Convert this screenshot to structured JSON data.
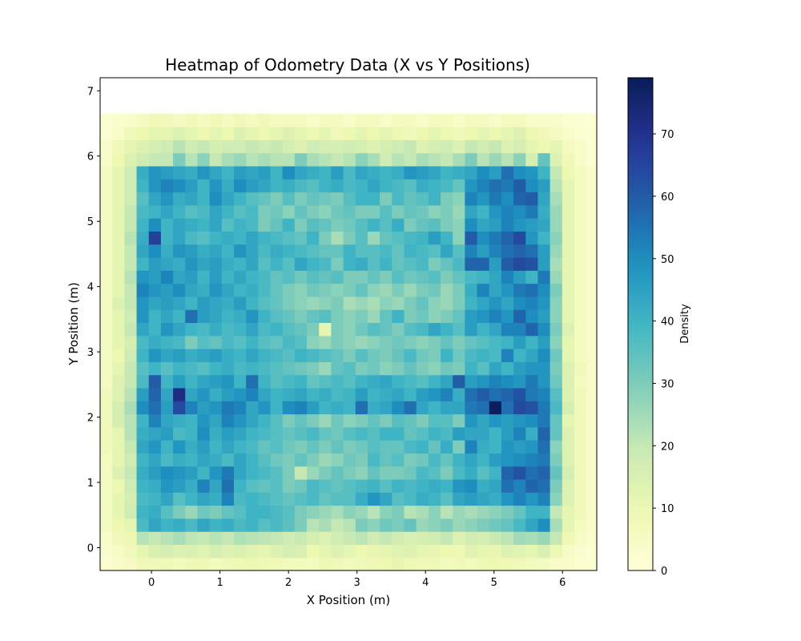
{
  "chart_data": {
    "type": "heatmap",
    "title": "Heatmap of Odometry Data (X vs Y Positions)",
    "xlabel": "X Position (m)",
    "ylabel": "Y Position (m)",
    "xlim": [
      -0.75,
      6.5
    ],
    "ylim": [
      -0.35,
      7.2
    ],
    "bin_size": [
      0.1775,
      0.2
    ],
    "x_start": -0.75,
    "y_start": -0.35,
    "xticks": [
      0,
      1,
      2,
      3,
      4,
      5,
      6
    ],
    "yticks": [
      0,
      1,
      2,
      3,
      4,
      5,
      6,
      7
    ],
    "xtick_labels": [
      "0",
      "1",
      "2",
      "3",
      "4",
      "5",
      "6"
    ],
    "ytick_labels": [
      "0",
      "1",
      "2",
      "3",
      "4",
      "5",
      "6",
      "7"
    ],
    "colorbar": {
      "label": "Density",
      "min": 0,
      "max": 79,
      "ticks": [
        0,
        10,
        20,
        30,
        40,
        50,
        60,
        70
      ],
      "tick_labels": [
        "0",
        "10",
        "20",
        "30",
        "40",
        "50",
        "60",
        "70"
      ],
      "colormap": "YlGnBu"
    },
    "grid": false,
    "rows_note": "rows listed from bottom (y=-0.35) to top (y=7.2)",
    "values": [
      [
        2,
        4,
        5,
        8,
        8,
        9,
        7,
        9,
        9,
        7,
        8,
        9,
        10,
        9,
        8,
        7,
        7,
        6,
        9,
        8,
        7,
        8,
        9,
        10,
        11,
        9,
        8,
        9,
        7,
        8,
        7,
        9,
        10,
        9,
        8,
        7,
        6,
        4,
        4,
        2,
        2
      ],
      [
        3,
        5,
        8,
        12,
        15,
        16,
        14,
        15,
        13,
        16,
        14,
        15,
        13,
        12,
        14,
        16,
        15,
        10,
        12,
        14,
        12,
        10,
        11,
        12,
        13,
        14,
        12,
        11,
        10,
        9,
        13,
        12,
        11,
        14,
        13,
        12,
        15,
        10,
        5,
        3,
        2
      ],
      [
        4,
        8,
        10,
        22,
        20,
        22,
        24,
        21,
        20,
        22,
        20,
        23,
        22,
        21,
        20,
        18,
        19,
        16,
        14,
        17,
        19,
        21,
        18,
        20,
        17,
        15,
        16,
        18,
        20,
        14,
        17,
        16,
        19,
        21,
        25,
        24,
        26,
        20,
        9,
        5,
        3
      ],
      [
        6,
        10,
        12,
        38,
        44,
        40,
        42,
        38,
        44,
        40,
        42,
        38,
        40,
        36,
        38,
        35,
        30,
        22,
        24,
        20,
        22,
        30,
        28,
        32,
        30,
        34,
        26,
        28,
        30,
        26,
        28,
        30,
        32,
        34,
        38,
        44,
        50,
        24,
        12,
        6,
        4
      ],
      [
        6,
        12,
        18,
        40,
        42,
        36,
        30,
        26,
        32,
        30,
        34,
        36,
        40,
        40,
        38,
        36,
        30,
        28,
        26,
        24,
        28,
        26,
        22,
        28,
        30,
        22,
        24,
        28,
        22,
        26,
        24,
        26,
        28,
        30,
        34,
        40,
        40,
        20,
        12,
        8,
        4
      ],
      [
        6,
        12,
        16,
        38,
        40,
        44,
        36,
        40,
        44,
        42,
        52,
        38,
        40,
        38,
        36,
        34,
        36,
        38,
        34,
        36,
        36,
        42,
        48,
        44,
        36,
        38,
        42,
        40,
        36,
        44,
        46,
        44,
        42,
        48,
        52,
        48,
        52,
        28,
        14,
        8,
        4
      ],
      [
        6,
        10,
        18,
        40,
        42,
        48,
        46,
        42,
        52,
        44,
        56,
        40,
        36,
        34,
        36,
        30,
        32,
        38,
        36,
        34,
        36,
        38,
        40,
        36,
        40,
        38,
        40,
        42,
        40,
        48,
        50,
        42,
        44,
        56,
        52,
        58,
        56,
        30,
        14,
        8,
        4
      ],
      [
        6,
        14,
        20,
        42,
        46,
        50,
        48,
        46,
        40,
        48,
        54,
        44,
        40,
        38,
        36,
        30,
        20,
        26,
        30,
        34,
        30,
        28,
        34,
        30,
        30,
        32,
        38,
        36,
        30,
        38,
        42,
        36,
        40,
        58,
        62,
        56,
        58,
        34,
        16,
        8,
        4
      ],
      [
        6,
        12,
        18,
        40,
        44,
        38,
        42,
        40,
        44,
        42,
        38,
        44,
        40,
        36,
        32,
        30,
        34,
        30,
        26,
        28,
        32,
        30,
        38,
        34,
        36,
        30,
        32,
        38,
        34,
        40,
        44,
        40,
        46,
        48,
        50,
        52,
        54,
        30,
        14,
        8,
        4
      ],
      [
        8,
        12,
        20,
        44,
        48,
        40,
        48,
        42,
        46,
        40,
        44,
        40,
        38,
        34,
        36,
        32,
        30,
        34,
        30,
        34,
        30,
        32,
        36,
        34,
        34,
        38,
        40,
        34,
        42,
        30,
        52,
        42,
        40,
        48,
        46,
        48,
        56,
        28,
        14,
        8,
        4
      ],
      [
        8,
        12,
        22,
        42,
        44,
        46,
        38,
        40,
        50,
        42,
        46,
        44,
        40,
        38,
        36,
        34,
        36,
        38,
        34,
        32,
        36,
        38,
        36,
        40,
        40,
        34,
        36,
        40,
        38,
        46,
        44,
        44,
        40,
        46,
        52,
        42,
        58,
        34,
        14,
        8,
        4
      ],
      [
        8,
        16,
        22,
        40,
        52,
        44,
        42,
        40,
        48,
        44,
        52,
        48,
        44,
        40,
        36,
        30,
        34,
        30,
        26,
        32,
        28,
        30,
        34,
        30,
        36,
        34,
        30,
        36,
        36,
        30,
        48,
        44,
        48,
        46,
        48,
        50,
        54,
        34,
        12,
        8,
        4
      ],
      [
        8,
        16,
        24,
        50,
        56,
        46,
        64,
        52,
        46,
        48,
        54,
        52,
        44,
        48,
        40,
        50,
        52,
        46,
        40,
        42,
        40,
        56,
        42,
        44,
        50,
        56,
        44,
        40,
        44,
        44,
        54,
        56,
        78,
        56,
        64,
        62,
        54,
        38,
        16,
        8,
        4
      ],
      [
        8,
        14,
        22,
        46,
        58,
        44,
        72,
        44,
        48,
        42,
        46,
        48,
        52,
        44,
        40,
        42,
        44,
        40,
        42,
        38,
        40,
        46,
        40,
        42,
        44,
        40,
        46,
        48,
        52,
        42,
        56,
        60,
        56,
        58,
        62,
        54,
        52,
        36,
        14,
        8,
        4
      ],
      [
        6,
        14,
        20,
        38,
        60,
        40,
        46,
        40,
        44,
        46,
        48,
        40,
        56,
        40,
        36,
        38,
        40,
        34,
        36,
        38,
        36,
        40,
        42,
        44,
        40,
        38,
        36,
        40,
        44,
        60,
        46,
        48,
        52,
        50,
        48,
        54,
        48,
        32,
        14,
        6,
        4
      ],
      [
        6,
        12,
        20,
        36,
        40,
        36,
        40,
        38,
        36,
        40,
        42,
        38,
        40,
        38,
        36,
        34,
        32,
        30,
        26,
        34,
        36,
        30,
        32,
        28,
        30,
        34,
        30,
        28,
        32,
        30,
        40,
        36,
        44,
        40,
        46,
        48,
        48,
        30,
        14,
        8,
        4
      ],
      [
        6,
        10,
        18,
        40,
        48,
        44,
        46,
        42,
        44,
        46,
        42,
        40,
        44,
        40,
        38,
        36,
        40,
        38,
        36,
        34,
        30,
        36,
        32,
        30,
        34,
        38,
        32,
        30,
        40,
        32,
        38,
        40,
        38,
        52,
        40,
        44,
        50,
        32,
        12,
        6,
        4
      ],
      [
        6,
        12,
        16,
        38,
        42,
        40,
        38,
        30,
        36,
        34,
        38,
        36,
        40,
        36,
        34,
        38,
        36,
        28,
        26,
        30,
        28,
        26,
        28,
        30,
        32,
        30,
        28,
        30,
        34,
        30,
        34,
        36,
        38,
        40,
        46,
        40,
        46,
        28,
        12,
        6,
        4
      ],
      [
        6,
        12,
        20,
        44,
        40,
        48,
        44,
        40,
        38,
        42,
        38,
        40,
        44,
        38,
        40,
        36,
        34,
        30,
        12,
        30,
        28,
        32,
        36,
        34,
        30,
        36,
        38,
        44,
        40,
        36,
        46,
        40,
        44,
        52,
        52,
        58,
        50,
        30,
        14,
        6,
        4
      ],
      [
        6,
        12,
        18,
        48,
        40,
        44,
        40,
        56,
        46,
        44,
        40,
        42,
        48,
        40,
        36,
        34,
        30,
        34,
        36,
        30,
        28,
        30,
        26,
        34,
        40,
        30,
        32,
        28,
        30,
        34,
        46,
        48,
        52,
        48,
        58,
        50,
        46,
        28,
        12,
        6,
        4
      ],
      [
        6,
        14,
        20,
        48,
        44,
        46,
        44,
        40,
        46,
        44,
        42,
        46,
        40,
        36,
        34,
        30,
        28,
        26,
        28,
        30,
        24,
        26,
        24,
        28,
        26,
        30,
        34,
        28,
        26,
        30,
        40,
        44,
        48,
        44,
        50,
        52,
        48,
        28,
        12,
        6,
        4
      ],
      [
        6,
        12,
        20,
        52,
        48,
        46,
        50,
        44,
        42,
        48,
        44,
        40,
        42,
        38,
        34,
        30,
        28,
        32,
        30,
        28,
        30,
        34,
        28,
        26,
        30,
        26,
        30,
        32,
        26,
        30,
        42,
        52,
        44,
        48,
        54,
        56,
        50,
        30,
        12,
        6,
        4
      ],
      [
        6,
        12,
        22,
        48,
        46,
        52,
        44,
        46,
        40,
        46,
        40,
        44,
        40,
        38,
        34,
        36,
        32,
        36,
        34,
        36,
        30,
        30,
        34,
        30,
        36,
        32,
        34,
        36,
        30,
        34,
        38,
        40,
        44,
        52,
        46,
        40,
        54,
        26,
        12,
        6,
        4
      ],
      [
        6,
        12,
        20,
        40,
        46,
        44,
        42,
        48,
        44,
        46,
        42,
        40,
        44,
        36,
        40,
        36,
        44,
        40,
        38,
        30,
        40,
        42,
        36,
        40,
        34,
        36,
        38,
        30,
        34,
        38,
        58,
        58,
        46,
        60,
        64,
        62,
        46,
        24,
        12,
        6,
        4
      ],
      [
        6,
        12,
        20,
        44,
        50,
        42,
        48,
        46,
        42,
        44,
        40,
        48,
        44,
        38,
        42,
        40,
        38,
        36,
        34,
        34,
        40,
        36,
        36,
        38,
        34,
        40,
        38,
        36,
        44,
        36,
        52,
        46,
        52,
        56,
        58,
        56,
        46,
        26,
        12,
        6,
        4
      ],
      [
        6,
        12,
        22,
        42,
        66,
        40,
        44,
        38,
        36,
        40,
        42,
        40,
        44,
        40,
        38,
        36,
        34,
        40,
        30,
        24,
        30,
        36,
        26,
        34,
        36,
        38,
        40,
        46,
        40,
        28,
        60,
        50,
        54,
        58,
        64,
        48,
        40,
        28,
        12,
        6,
        4
      ],
      [
        6,
        12,
        20,
        40,
        50,
        40,
        44,
        42,
        40,
        44,
        36,
        40,
        38,
        30,
        34,
        40,
        30,
        36,
        34,
        30,
        32,
        36,
        40,
        36,
        42,
        30,
        34,
        36,
        30,
        28,
        50,
        44,
        46,
        52,
        48,
        46,
        44,
        26,
        12,
        6,
        4
      ],
      [
        6,
        12,
        20,
        38,
        40,
        44,
        40,
        36,
        38,
        44,
        40,
        36,
        38,
        30,
        32,
        28,
        34,
        30,
        28,
        32,
        34,
        30,
        30,
        36,
        30,
        34,
        32,
        28,
        30,
        26,
        44,
        40,
        48,
        52,
        50,
        54,
        42,
        26,
        12,
        6,
        4
      ],
      [
        6,
        12,
        18,
        36,
        44,
        48,
        42,
        44,
        40,
        50,
        44,
        40,
        36,
        34,
        30,
        36,
        30,
        34,
        32,
        30,
        36,
        40,
        40,
        30,
        38,
        34,
        36,
        40,
        30,
        28,
        52,
        48,
        54,
        50,
        58,
        60,
        44,
        24,
        12,
        6,
        4
      ],
      [
        6,
        12,
        18,
        40,
        48,
        52,
        50,
        46,
        40,
        48,
        42,
        50,
        46,
        44,
        40,
        42,
        38,
        36,
        40,
        42,
        38,
        40,
        44,
        40,
        38,
        36,
        42,
        40,
        38,
        34,
        48,
        52,
        56,
        54,
        60,
        50,
        46,
        22,
        12,
        6,
        4
      ],
      [
        6,
        12,
        18,
        42,
        48,
        46,
        44,
        42,
        48,
        44,
        40,
        46,
        44,
        46,
        40,
        50,
        44,
        42,
        40,
        46,
        38,
        44,
        42,
        40,
        42,
        48,
        46,
        44,
        40,
        42,
        44,
        50,
        46,
        56,
        50,
        48,
        40,
        20,
        10,
        6,
        4
      ],
      [
        4,
        10,
        14,
        18,
        20,
        20,
        30,
        22,
        28,
        20,
        24,
        26,
        22,
        24,
        22,
        22,
        30,
        24,
        22,
        20,
        22,
        28,
        24,
        18,
        22,
        20,
        24,
        22,
        20,
        24,
        30,
        22,
        26,
        22,
        28,
        16,
        34,
        14,
        8,
        4,
        2
      ],
      [
        4,
        8,
        12,
        14,
        16,
        18,
        22,
        18,
        20,
        16,
        18,
        18,
        20,
        18,
        20,
        16,
        14,
        18,
        16,
        16,
        18,
        16,
        14,
        16,
        18,
        20,
        14,
        16,
        18,
        14,
        20,
        18,
        20,
        14,
        16,
        12,
        10,
        12,
        6,
        4,
        2
      ],
      [
        2,
        4,
        8,
        10,
        12,
        12,
        14,
        12,
        10,
        12,
        10,
        14,
        12,
        10,
        12,
        14,
        12,
        10,
        12,
        8,
        10,
        12,
        10,
        12,
        10,
        8,
        10,
        12,
        10,
        8,
        10,
        12,
        10,
        12,
        14,
        10,
        8,
        6,
        4,
        2,
        2
      ],
      [
        2,
        3,
        4,
        6,
        8,
        8,
        6,
        8,
        6,
        8,
        6,
        8,
        6,
        8,
        6,
        6,
        6,
        4,
        6,
        6,
        4,
        6,
        6,
        4,
        6,
        6,
        4,
        6,
        6,
        4,
        6,
        6,
        4,
        6,
        6,
        4,
        4,
        4,
        2,
        2,
        1
      ]
    ]
  }
}
